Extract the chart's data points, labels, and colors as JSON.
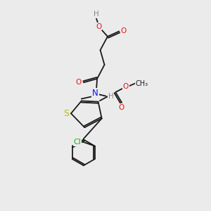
{
  "background_color": "#ebebeb",
  "bond_color": "#1a1a1a",
  "atom_colors": {
    "O": "#ee1111",
    "N": "#1111ee",
    "S": "#bbbb00",
    "Cl": "#11bb11",
    "H": "#888888",
    "C": "#1a1a1a"
  },
  "fig_size": [
    3.0,
    3.0
  ],
  "dpi": 100
}
